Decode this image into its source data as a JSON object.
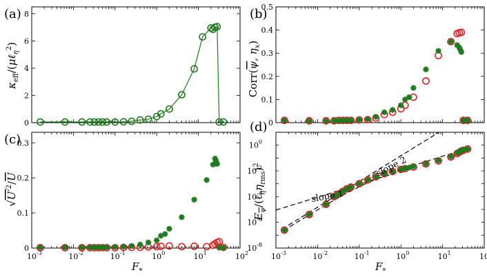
{
  "figure": {
    "xlabel": "F",
    "xlabel_sub": "*",
    "xlabel_full": "F_*"
  },
  "colors": {
    "green": "#1f7a1f",
    "red": "#e02020"
  },
  "chart_data": [
    {
      "panel": "(a)",
      "type": "line",
      "xscale": "log",
      "xlim": [
        0.001,
        100
      ],
      "ylim": [
        0,
        8.5
      ],
      "yticks": [
        "0",
        "2",
        "4",
        "6",
        "8"
      ],
      "xticks": [],
      "ylabel": "κ_eff / (μ ℓ_η²)",
      "ylabel_parts": {
        "k": "κ",
        "eff": "eff",
        "slash": "/(",
        "mu": "μℓ",
        "eta": "η",
        "two": "2",
        "close": ")"
      },
      "series": [
        {
          "name": "kappa_eff",
          "marker": "open-circle-line",
          "color": "#1f7a1f",
          "x": [
            0.0016,
            0.0063,
            0.016,
            0.025,
            0.032,
            0.04,
            0.05,
            0.063,
            0.1,
            0.16,
            0.25,
            0.4,
            0.63,
            1.0,
            1.26,
            2.0,
            3.98,
            7.94,
            12.6,
            20.0,
            22.4,
            25.1,
            28.2,
            31.6,
            39.8
          ],
          "values": [
            0.05,
            0.05,
            0.05,
            0.05,
            0.05,
            0.05,
            0.05,
            0.05,
            0.05,
            0.06,
            0.1,
            0.2,
            0.25,
            0.45,
            0.65,
            1.0,
            2.05,
            3.95,
            6.3,
            6.95,
            6.85,
            7.0,
            7.05,
            0.05,
            0.05
          ]
        }
      ]
    },
    {
      "panel": "(b)",
      "type": "scatter",
      "xscale": "log",
      "xlim": [
        0.001,
        100
      ],
      "ylim": [
        0,
        0.5
      ],
      "yticks": [
        "0",
        "0.1",
        "0.2",
        "0.3",
        "0.4",
        "0.5"
      ],
      "xticks": [],
      "ylabel": "Corr(ψ̄, η_x)",
      "ylabel_parts": {
        "corr": "Corr(",
        "psi": "ψ",
        "comma": ", η",
        "x": "x",
        "close": ")"
      },
      "series": [
        {
          "name": "red circles",
          "marker": "open-circle",
          "color": "#e02020",
          "x": [
            0.0016,
            0.0063,
            0.016,
            0.025,
            0.032,
            0.04,
            0.05,
            0.063,
            0.1,
            0.16,
            0.25,
            0.4,
            0.63,
            1.0,
            1.26,
            2.0,
            3.98,
            7.94,
            15.8,
            22.4,
            25.1,
            28.2,
            31.6,
            39.8
          ],
          "values": [
            0.01,
            0.008,
            0.008,
            0.008,
            0.01,
            0.01,
            0.01,
            0.01,
            0.012,
            0.013,
            0.02,
            0.035,
            0.045,
            0.06,
            0.075,
            0.11,
            0.18,
            0.29,
            0.35,
            0.385,
            0.388,
            0.39,
            0.01,
            0.01
          ]
        },
        {
          "name": "green stars",
          "marker": "star",
          "color": "#1f7a1f",
          "x": [
            0.0016,
            0.0063,
            0.016,
            0.025,
            0.032,
            0.04,
            0.05,
            0.063,
            0.1,
            0.16,
            0.25,
            0.4,
            0.63,
            1.0,
            1.26,
            1.58,
            2.0,
            3.98,
            7.94,
            15.8,
            22.4,
            25.1,
            26.6,
            28.2,
            31.6,
            39.8
          ],
          "values": [
            0.01,
            0.008,
            0.008,
            0.008,
            0.009,
            0.01,
            0.01,
            0.01,
            0.012,
            0.015,
            0.025,
            0.045,
            0.055,
            0.075,
            0.1,
            0.11,
            0.15,
            0.23,
            0.31,
            0.35,
            0.335,
            0.325,
            0.315,
            0.305,
            0.01,
            0.01
          ]
        }
      ]
    },
    {
      "panel": "(c)",
      "type": "scatter",
      "xscale": "log",
      "xlim": [
        0.001,
        100
      ],
      "ylim": [
        0,
        0.33
      ],
      "yticks": [
        "0",
        "0.1",
        "0.2",
        "0.3"
      ],
      "xticks": [
        "10",
        "10",
        "10",
        "10",
        "10",
        "10"
      ],
      "xtick_exps": [
        "-3",
        "-2",
        "-1",
        "0",
        "1",
        "2"
      ],
      "ylabel": "√(U′²) / Ū",
      "ylabel_parts": {
        "u": "U′",
        "two": "2",
        "slash": "/",
        "ubar": "U"
      },
      "series": [
        {
          "name": "red circles",
          "marker": "open-circle",
          "color": "#e02020",
          "x": [
            0.0016,
            0.0063,
            0.016,
            0.025,
            0.032,
            0.04,
            0.05,
            0.063,
            0.1,
            0.16,
            0.25,
            0.4,
            0.63,
            1.0,
            1.26,
            2.0,
            3.98,
            7.94,
            15.8,
            22.4,
            25.1,
            28.2,
            31.6,
            39.8
          ],
          "values": [
            0.001,
            0.001,
            0.001,
            0.001,
            0.001,
            0.001,
            0.001,
            0.001,
            0.001,
            0.002,
            0.002,
            0.002,
            0.003,
            0.004,
            0.005,
            0.006,
            0.004,
            0.005,
            0.004,
            0.008,
            0.012,
            0.016,
            0.018,
            0.002
          ]
        },
        {
          "name": "green stars",
          "marker": "star",
          "color": "#1f7a1f",
          "x": [
            0.0016,
            0.0063,
            0.016,
            0.025,
            0.032,
            0.04,
            0.05,
            0.063,
            0.1,
            0.16,
            0.25,
            0.4,
            0.63,
            1.0,
            1.26,
            1.58,
            2.0,
            3.98,
            7.94,
            15.8,
            22.4,
            25.1,
            26.6,
            28.2,
            31.6,
            39.8
          ],
          "values": [
            0.002,
            0.002,
            0.002,
            0.002,
            0.002,
            0.002,
            0.002,
            0.002,
            0.003,
            0.004,
            0.006,
            0.01,
            0.016,
            0.022,
            0.035,
            0.04,
            0.055,
            0.088,
            0.138,
            0.194,
            0.238,
            0.255,
            0.248,
            0.24,
            0.001,
            0.001
          ]
        }
      ]
    },
    {
      "panel": "(d)",
      "type": "scatter",
      "xscale": "log",
      "yscale": "log",
      "xlim": [
        0.001,
        100
      ],
      "ylim": [
        1e-08,
        10
      ],
      "yticks": [
        "10",
        "10",
        "10",
        "10",
        "10"
      ],
      "ytick_exps": [
        "-8",
        "-6",
        "-4",
        "-2",
        "0"
      ],
      "xticks": [
        "10",
        "10",
        "10",
        "10",
        "10",
        "10"
      ],
      "xtick_exps": [
        "-3",
        "-2",
        "-1",
        "0",
        "1",
        "2"
      ],
      "ylabel": "E_ψ̄ / (ℓ_η η_rms)²",
      "ylabel_parts": {
        "e": "E",
        "psi": "ψ",
        "slash": "/(ℓ",
        "eta": "η",
        "eta2": "η",
        "rms": "rms",
        "close": ")",
        "two": "2"
      },
      "annotations": [
        "slope 1",
        "slope 2"
      ],
      "reference_lines": [
        {
          "label": "slope 1",
          "slope": 1,
          "through": [
            1,
            0.009
          ],
          "x_range": [
            0.001,
            1
          ]
        },
        {
          "label": "slope 2",
          "slope": 2,
          "through": [
            1,
            0.15
          ],
          "x_range": [
            0.002,
            35
          ]
        },
        {
          "label": "fit",
          "curve": "sqrt-blend",
          "x_range": [
            0.0015,
            40
          ]
        }
      ],
      "series": [
        {
          "name": "red circles",
          "marker": "open-circle",
          "color": "#e02020",
          "x": [
            0.0016,
            0.0063,
            0.016,
            0.025,
            0.032,
            0.04,
            0.05,
            0.063,
            0.1,
            0.16,
            0.25,
            0.4,
            0.63,
            1.0,
            1.26,
            2.0,
            3.98,
            7.94,
            15.8,
            22.4,
            25.1,
            28.2,
            31.6,
            39.8
          ],
          "values": [
            2.5e-07,
            4e-06,
            2.5e-05,
            0.0001,
            0.00016,
            0.00025,
            0.0004,
            0.00055,
            0.001,
            0.002,
            0.0035,
            0.006,
            0.009,
            0.013,
            0.015,
            0.02,
            0.035,
            0.06,
            0.12,
            0.22,
            0.28,
            0.35,
            0.4,
            0.5
          ]
        },
        {
          "name": "green stars",
          "marker": "star",
          "color": "#1f7a1f",
          "x": [
            0.0016,
            0.0063,
            0.016,
            0.025,
            0.032,
            0.04,
            0.05,
            0.063,
            0.1,
            0.16,
            0.25,
            0.4,
            0.63,
            1.0,
            1.26,
            1.58,
            2.0,
            3.98,
            7.94,
            15.8,
            22.4,
            25.1,
            26.6,
            28.2,
            31.6,
            39.8
          ],
          "values": [
            2.5e-07,
            4e-06,
            2.5e-05,
            0.0001,
            0.00016,
            0.00025,
            0.0004,
            0.00055,
            0.001,
            0.002,
            0.0035,
            0.006,
            0.009,
            0.013,
            0.016,
            0.018,
            0.022,
            0.036,
            0.065,
            0.13,
            0.24,
            0.3,
            0.34,
            0.38,
            0.44,
            0.5
          ]
        }
      ]
    }
  ]
}
